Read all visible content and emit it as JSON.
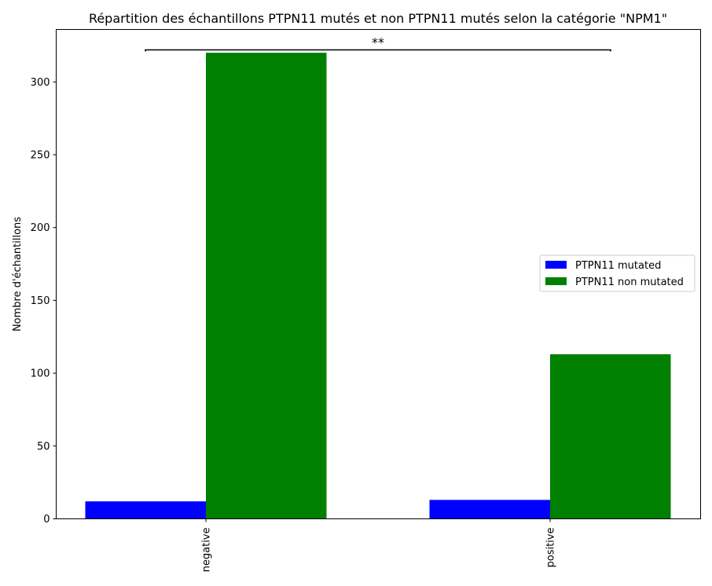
{
  "chart_data": {
    "type": "bar",
    "title": "Répartition des échantillons PTPN11 mutés et non PTPN11 mutés selon la catégorie \"NPM1\"",
    "xlabel": "",
    "ylabel": "Nombre d'échantillons",
    "categories": [
      "negative",
      "positive"
    ],
    "series": [
      {
        "name": "PTPN11 mutated",
        "values": [
          12,
          13
        ],
        "color": "#0000ff"
      },
      {
        "name": "PTPN11 non mutated",
        "values": [
          320,
          113
        ],
        "color": "#008000"
      }
    ],
    "ylim": [
      0,
      336
    ],
    "yticks": [
      0,
      50,
      100,
      150,
      200,
      250,
      300
    ],
    "legend_position": "center-right",
    "grid": false,
    "annotation": {
      "text": "**",
      "from_category": "negative",
      "to_category": "positive",
      "level": 322
    }
  }
}
